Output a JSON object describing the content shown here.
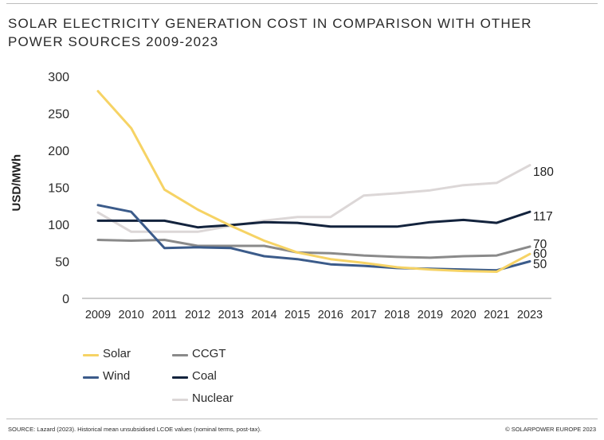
{
  "title": "SOLAR ELECTRICITY GENERATION COST IN COMPARISON WITH OTHER POWER SOURCES 2009-2023",
  "source": "SOURCE: Lazard (2023). Historical mean unsubsidised LCOE values (nominal terms, post-tax).",
  "copyright": "© SOLARPOWER EUROPE 2023",
  "chart_data": {
    "type": "line",
    "title": "SOLAR ELECTRICITY GENERATION COST IN COMPARISON WITH OTHER POWER SOURCES 2009-2023",
    "xlabel": "",
    "ylabel": "USD/MWh",
    "ylim": [
      0,
      300
    ],
    "yticks": [
      0,
      50,
      100,
      150,
      200,
      250,
      300
    ],
    "categories": [
      "2009",
      "2010",
      "2011",
      "2012",
      "2013",
      "2014",
      "2015",
      "2016",
      "2017",
      "2018",
      "2019",
      "2020",
      "2021",
      "2023"
    ],
    "grid": false,
    "legend_position": "bottom-left",
    "series": [
      {
        "name": "Solar",
        "color": "#f6d365",
        "values": [
          280,
          230,
          147,
          120,
          98,
          78,
          62,
          53,
          48,
          42,
          39,
          37,
          36,
          60
        ],
        "end_label": "60"
      },
      {
        "name": "Wind",
        "color": "#3b5b8a",
        "values": [
          126,
          117,
          68,
          69,
          68,
          57,
          53,
          46,
          44,
          41,
          40,
          39,
          38,
          50
        ],
        "end_label": "50"
      },
      {
        "name": "CCGT",
        "color": "#8a8a8a",
        "values": [
          79,
          78,
          79,
          71,
          71,
          71,
          62,
          61,
          58,
          56,
          55,
          57,
          58,
          70
        ],
        "end_label": "70"
      },
      {
        "name": "Coal",
        "color": "#13233d",
        "values": [
          105,
          105,
          105,
          96,
          99,
          103,
          102,
          97,
          97,
          97,
          103,
          106,
          102,
          117
        ],
        "end_label": "117"
      },
      {
        "name": "Nuclear",
        "color": "#dcd7d7",
        "values": [
          116,
          90,
          90,
          90,
          98,
          105,
          110,
          110,
          139,
          142,
          146,
          153,
          156,
          180
        ],
        "end_label": "180"
      }
    ]
  }
}
